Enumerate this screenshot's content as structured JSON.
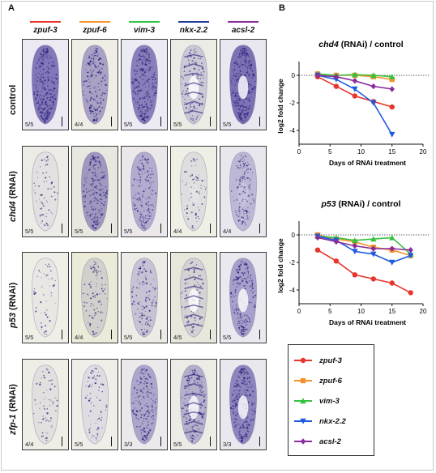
{
  "panel_a": {
    "letter": "A",
    "genes": [
      {
        "name": "zpuf-3",
        "color": "#e8352b"
      },
      {
        "name": "zpuf-6",
        "color": "#f5912a"
      },
      {
        "name": "vim-3",
        "color": "#36c140"
      },
      {
        "name": "nkx-2.2",
        "color": "#1e3a9a"
      },
      {
        "name": "acsl-2",
        "color": "#8a2b9e"
      }
    ],
    "rows": [
      {
        "label_plain": "control",
        "label_italic": "",
        "label_suffix": "",
        "counts": [
          "5/5",
          "4/4",
          "5/5",
          "5/5",
          "5/5"
        ]
      },
      {
        "label_plain": "",
        "label_italic": "chd4",
        "label_suffix": " (RNAi)",
        "counts": [
          "5/5",
          "5/5",
          "5/5",
          "4/4",
          "4/4"
        ]
      },
      {
        "label_plain": "",
        "label_italic": "p53",
        "label_suffix": " (RNAi)",
        "counts": [
          "5/5",
          "4/4",
          "5/5",
          "4/5",
          "5/5"
        ]
      },
      {
        "label_plain": "",
        "label_italic": "zfp-1",
        "label_suffix": " (RNAi)",
        "counts": [
          "4/4",
          "5/5",
          "3/3",
          "5/5",
          "3/3"
        ]
      }
    ]
  },
  "panel_b": {
    "letter": "B",
    "chart_data": [
      {
        "type": "line",
        "title_italic": "chd4",
        "title_rest": " (RNAi) / control",
        "xlabel": "Days of RNAi treatment",
        "ylabel": "log2 fold change",
        "xlim": [
          0,
          20
        ],
        "ylim": [
          -5,
          1
        ],
        "xticks": [
          0,
          5,
          10,
          15,
          20
        ],
        "yticks": [
          0,
          -2,
          -4
        ],
        "reference_line": 0,
        "series": [
          {
            "name": "zpuf-3",
            "x": [
              3,
              6,
              9,
              12,
              15
            ],
            "y": [
              -0.1,
              -0.8,
              -1.5,
              -1.9,
              -2.3
            ]
          },
          {
            "name": "zpuf-6",
            "x": [
              3,
              6,
              9,
              12,
              15
            ],
            "y": [
              0.1,
              0.0,
              0.0,
              -0.1,
              -0.3
            ]
          },
          {
            "name": "vim-3",
            "x": [
              3,
              6,
              9,
              12,
              15
            ],
            "y": [
              0.1,
              0.0,
              0.05,
              0.0,
              -0.1
            ]
          },
          {
            "name": "nkx-2.2",
            "x": [
              3,
              6,
              9,
              12,
              15
            ],
            "y": [
              0.0,
              -0.3,
              -1.0,
              -2.0,
              -4.3
            ]
          },
          {
            "name": "acsl-2",
            "x": [
              3,
              6,
              9,
              12,
              15
            ],
            "y": [
              0.0,
              -0.1,
              -0.4,
              -0.8,
              -1.0
            ]
          }
        ]
      },
      {
        "type": "line",
        "title_italic": "p53",
        "title_rest": " (RNAi) / control",
        "xlabel": "Days of RNAi treatment",
        "ylabel": "log2 fold change",
        "xlim": [
          0,
          20
        ],
        "ylim": [
          -5,
          1
        ],
        "xticks": [
          0,
          5,
          10,
          15,
          20
        ],
        "yticks": [
          0,
          -2,
          -4
        ],
        "reference_line": 0,
        "series": [
          {
            "name": "zpuf-3",
            "x": [
              3,
              6,
              9,
              12,
              15,
              18
            ],
            "y": [
              -1.1,
              -1.9,
              -2.9,
              -3.2,
              -3.5,
              -4.2
            ]
          },
          {
            "name": "zpuf-6",
            "x": [
              3,
              6,
              9,
              12,
              15,
              18
            ],
            "y": [
              0.0,
              -0.3,
              -0.5,
              -0.9,
              -1.1,
              -1.5
            ]
          },
          {
            "name": "vim-3",
            "x": [
              3,
              6,
              9,
              12,
              15,
              18
            ],
            "y": [
              -0.1,
              -0.2,
              -0.4,
              -0.3,
              -0.2,
              -1.4
            ]
          },
          {
            "name": "nkx-2.2",
            "x": [
              3,
              6,
              9,
              12,
              15,
              18
            ],
            "y": [
              -0.1,
              -0.4,
              -1.2,
              -1.4,
              -2.0,
              -1.5
            ]
          },
          {
            "name": "acsl-2",
            "x": [
              3,
              6,
              9,
              12,
              15,
              18
            ],
            "y": [
              -0.2,
              -0.5,
              -0.8,
              -1.0,
              -1.0,
              -1.1
            ]
          }
        ]
      }
    ],
    "legend": [
      {
        "name": "zpuf-3",
        "color": "#e8352b",
        "marker": "circle"
      },
      {
        "name": "zpuf-6",
        "color": "#f5912a",
        "marker": "square"
      },
      {
        "name": "vim-3",
        "color": "#36c140",
        "marker": "triangle-up"
      },
      {
        "name": "nkx-2.2",
        "color": "#1e5adf",
        "marker": "triangle-down"
      },
      {
        "name": "acsl-2",
        "color": "#8a2b9e",
        "marker": "diamond"
      }
    ]
  }
}
